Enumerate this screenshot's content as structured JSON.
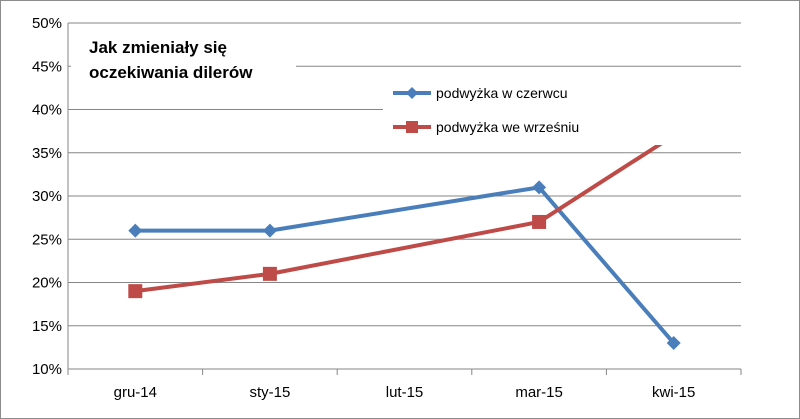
{
  "chart_data": {
    "type": "line",
    "title": [
      "Jak zmieniały się",
      "oczekiwania dilerów"
    ],
    "categories": [
      "gru-14",
      "sty-15",
      "lut-15",
      "mar-15",
      "kwi-15"
    ],
    "y_tick_labels": [
      "10%",
      "15%",
      "20%",
      "25%",
      "30%",
      "35%",
      "40%",
      "45%",
      "50%"
    ],
    "ylim": [
      10,
      50
    ],
    "y_step": 5,
    "grid": true,
    "legend_position": "top-right",
    "series": [
      {
        "name": "podwyżka w czerwcu",
        "color": "#4a7ebb",
        "marker": "diamond",
        "values": [
          26,
          26,
          null,
          31,
          13
        ]
      },
      {
        "name": "podwyżka we wrześniu",
        "color": "#be4b48",
        "marker": "square",
        "values": [
          19,
          21,
          null,
          27,
          37
        ]
      }
    ]
  }
}
